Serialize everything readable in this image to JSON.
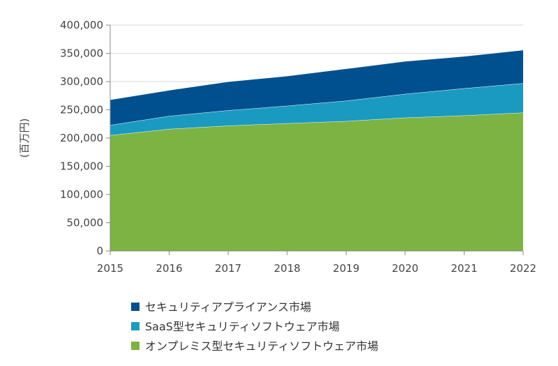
{
  "chart_data": {
    "type": "area",
    "stacked": true,
    "ylabel": "(百万円)",
    "ylim": [
      0,
      400000
    ],
    "yticks": [
      0,
      50000,
      100000,
      150000,
      200000,
      250000,
      300000,
      350000,
      400000
    ],
    "ytick_labels": [
      "0",
      "50,000",
      "100,000",
      "150,000",
      "200,000",
      "250,000",
      "300,000",
      "350,000",
      "400,000"
    ],
    "x": [
      "2015",
      "2016",
      "2017",
      "2018",
      "2019",
      "2020",
      "2021",
      "2022"
    ],
    "grid": true,
    "legend_position": "bottom",
    "series": [
      {
        "name": "オンプレミス型セキュリティソフトウェア市場",
        "color": "#7cb342",
        "values": [
          205000,
          216000,
          222000,
          226000,
          230000,
          236000,
          240000,
          245000
        ]
      },
      {
        "name": "SaaS型セキュリティソフトウェア市場",
        "color": "#1a9ac0",
        "values": [
          18000,
          23000,
          27000,
          31000,
          36000,
          42000,
          48000,
          52000
        ]
      },
      {
        "name": "セキュリティアプライアンス市場",
        "color": "#00508f",
        "values": [
          45000,
          46000,
          51000,
          53000,
          57000,
          58000,
          57000,
          59000
        ]
      }
    ],
    "legend_order": [
      2,
      1,
      0
    ]
  }
}
